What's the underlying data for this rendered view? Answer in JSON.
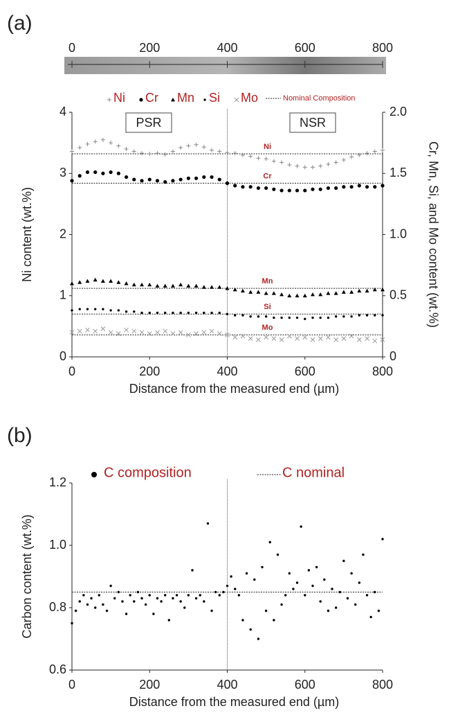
{
  "chart_data": [
    {
      "type": "scatter",
      "label": "(a)",
      "x_label": "Distance from the measured end (µm)",
      "y_label": "Ni content (wt.%)",
      "y2_label": "Cr, Mn, Si, and Mo content (wt.%)",
      "image_ticks": [
        0,
        200,
        400,
        600,
        800
      ],
      "xlim": [
        0,
        800
      ],
      "xticks": [
        0,
        200,
        400,
        600,
        800
      ],
      "ylim": [
        0,
        4
      ],
      "yticks": [
        0,
        1,
        2,
        3,
        4
      ],
      "y2lim": [
        0,
        2
      ],
      "y2ticks": [
        0,
        0.5,
        {
          "value": 1,
          "label": "1.0"
        },
        1.5,
        {
          "value": 2,
          "label": "2.0"
        }
      ],
      "grid": false,
      "legend_color": "#b22222",
      "divider": 400,
      "regions": [
        "PSR",
        "NSR"
      ],
      "reference_label": "Nominal Composition",
      "reference_lines": [
        {
          "name": "Ni",
          "value": 3.32,
          "axis": "y"
        },
        {
          "name": "Cr",
          "value": 1.42,
          "axis": "y2"
        },
        {
          "name": "Mn",
          "value": 0.56,
          "axis": "y2"
        },
        {
          "name": "Si",
          "value": 0.35,
          "axis": "y2"
        },
        {
          "name": "Mo",
          "value": 0.18,
          "axis": "y2"
        }
      ],
      "x": [
        0,
        20,
        40,
        60,
        80,
        100,
        120,
        140,
        160,
        180,
        200,
        220,
        240,
        260,
        280,
        300,
        320,
        340,
        360,
        380,
        400,
        420,
        440,
        460,
        480,
        500,
        520,
        540,
        560,
        580,
        600,
        620,
        640,
        660,
        680,
        700,
        720,
        740,
        760,
        780,
        800
      ],
      "series": [
        {
          "name": "Ni",
          "color": "#888888",
          "marker": "plus",
          "axis": "y",
          "values": [
            3.36,
            3.42,
            3.48,
            3.52,
            3.55,
            3.5,
            3.45,
            3.4,
            3.36,
            3.33,
            3.32,
            3.33,
            3.31,
            3.36,
            3.42,
            3.45,
            3.47,
            3.43,
            3.38,
            3.36,
            3.34,
            3.33,
            3.3,
            3.28,
            3.25,
            3.24,
            3.2,
            3.18,
            3.14,
            3.12,
            3.1,
            3.1,
            3.12,
            3.15,
            3.18,
            3.22,
            3.27,
            3.3,
            3.33,
            3.36,
            3.38
          ]
        },
        {
          "name": "Cr",
          "color": "#000000",
          "marker": "circle",
          "axis": "y2",
          "values": [
            1.44,
            1.48,
            1.51,
            1.51,
            1.5,
            1.51,
            1.5,
            1.47,
            1.45,
            1.44,
            1.45,
            1.44,
            1.43,
            1.44,
            1.45,
            1.46,
            1.46,
            1.47,
            1.47,
            1.45,
            1.42,
            1.4,
            1.39,
            1.39,
            1.38,
            1.38,
            1.37,
            1.36,
            1.36,
            1.36,
            1.36,
            1.37,
            1.37,
            1.38,
            1.38,
            1.39,
            1.39,
            1.4,
            1.39,
            1.39,
            1.4
          ]
        },
        {
          "name": "Mn",
          "color": "#000000",
          "marker": "triangle",
          "axis": "y2",
          "values": [
            0.6,
            0.61,
            0.62,
            0.63,
            0.62,
            0.62,
            0.61,
            0.6,
            0.59,
            0.59,
            0.59,
            0.58,
            0.58,
            0.58,
            0.59,
            0.58,
            0.58,
            0.57,
            0.57,
            0.57,
            0.56,
            0.55,
            0.54,
            0.53,
            0.53,
            0.52,
            0.52,
            0.51,
            0.5,
            0.5,
            0.5,
            0.51,
            0.51,
            0.52,
            0.52,
            0.53,
            0.53,
            0.54,
            0.54,
            0.55,
            0.55
          ]
        },
        {
          "name": "Si",
          "color": "#000000",
          "marker": "dot",
          "axis": "y2",
          "values": [
            0.38,
            0.39,
            0.39,
            0.39,
            0.39,
            0.38,
            0.38,
            0.37,
            0.37,
            0.36,
            0.36,
            0.36,
            0.36,
            0.36,
            0.36,
            0.36,
            0.36,
            0.36,
            0.36,
            0.36,
            0.35,
            0.34,
            0.34,
            0.33,
            0.33,
            0.33,
            0.32,
            0.32,
            0.32,
            0.32,
            0.31,
            0.32,
            0.32,
            0.32,
            0.33,
            0.33,
            0.33,
            0.34,
            0.34,
            0.34,
            0.34
          ]
        },
        {
          "name": "Mo",
          "color": "#999999",
          "marker": "x",
          "axis": "y2",
          "values": [
            0.2,
            0.21,
            0.22,
            0.21,
            0.23,
            0.2,
            0.19,
            0.22,
            0.21,
            0.2,
            0.19,
            0.2,
            0.21,
            0.19,
            0.2,
            0.18,
            0.19,
            0.2,
            0.21,
            0.19,
            0.18,
            0.16,
            0.17,
            0.15,
            0.14,
            0.16,
            0.15,
            0.14,
            0.17,
            0.15,
            0.16,
            0.14,
            0.15,
            0.16,
            0.14,
            0.15,
            0.17,
            0.14,
            0.15,
            0.13,
            0.14
          ]
        }
      ]
    },
    {
      "type": "scatter",
      "label": "(b)",
      "x_label": "Distance from the measured end (µm)",
      "y_label": "Carbon content (wt.%)",
      "xlim": [
        0,
        800
      ],
      "xticks": [
        0,
        200,
        400,
        600,
        800
      ],
      "ylim": [
        0.6,
        1.2
      ],
      "yticks": [
        0.6,
        0.8,
        {
          "value": 1,
          "label": "1.0"
        },
        1.2
      ],
      "grid": false,
      "legend_color": "#b22222",
      "divider": 400,
      "reference_label": "C nominal",
      "reference_lines": [
        {
          "value": 0.85,
          "axis": "y"
        }
      ],
      "x": [
        0,
        10,
        20,
        30,
        40,
        50,
        60,
        70,
        80,
        90,
        100,
        110,
        120,
        130,
        140,
        150,
        160,
        170,
        180,
        190,
        200,
        210,
        220,
        230,
        240,
        250,
        260,
        270,
        280,
        290,
        300,
        310,
        320,
        330,
        340,
        350,
        360,
        370,
        380,
        390,
        400,
        410,
        420,
        430,
        440,
        450,
        460,
        470,
        480,
        490,
        500,
        510,
        520,
        530,
        540,
        550,
        560,
        570,
        580,
        590,
        600,
        610,
        620,
        630,
        640,
        650,
        660,
        670,
        680,
        690,
        700,
        710,
        720,
        730,
        740,
        750,
        760,
        770,
        780,
        790,
        800
      ],
      "series": [
        {
          "name": "C composition",
          "color": "#000000",
          "marker": "dot",
          "axis": "y",
          "values": [
            0.75,
            0.79,
            0.82,
            0.84,
            0.81,
            0.83,
            0.8,
            0.84,
            0.81,
            0.79,
            0.87,
            0.83,
            0.85,
            0.82,
            0.78,
            0.84,
            0.82,
            0.85,
            0.83,
            0.81,
            0.84,
            0.78,
            0.83,
            0.82,
            0.84,
            0.76,
            0.83,
            0.84,
            0.82,
            0.8,
            0.84,
            0.92,
            0.83,
            0.84,
            0.82,
            1.07,
            0.79,
            0.85,
            0.84,
            0.85,
            0.87,
            0.9,
            0.86,
            0.84,
            0.76,
            0.91,
            0.73,
            0.89,
            0.7,
            0.93,
            0.79,
            1.01,
            0.76,
            0.97,
            0.81,
            0.84,
            0.91,
            0.86,
            0.88,
            1.06,
            0.84,
            0.92,
            0.87,
            0.93,
            0.82,
            0.89,
            0.79,
            0.86,
            0.8,
            0.85,
            0.95,
            0.83,
            0.91,
            0.81,
            0.88,
            0.97,
            0.84,
            0.77,
            0.85,
            0.79,
            1.02
          ]
        }
      ]
    }
  ]
}
